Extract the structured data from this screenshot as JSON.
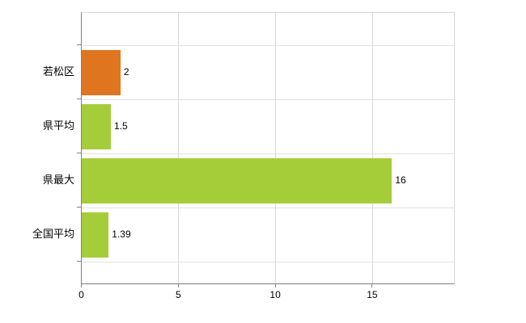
{
  "chart_data": {
    "type": "bar",
    "orientation": "horizontal",
    "title": "",
    "xlabel": "",
    "ylabel": "",
    "categories": [
      "若松区",
      "県平均",
      "県最大",
      "全国平均"
    ],
    "values": [
      2,
      1.5,
      16,
      1.39
    ],
    "value_labels": [
      "2",
      "1.5",
      "16",
      "1.39"
    ],
    "bar_colors": [
      "#e0751f",
      "#a5cd39",
      "#a5cd39",
      "#a5cd39"
    ],
    "x_ticks": [
      0,
      5,
      10,
      15
    ],
    "x_tick_labels": [
      "0",
      "5",
      "10",
      "15"
    ],
    "xlim": [
      0,
      19.2
    ],
    "grid": true,
    "legend": "none",
    "background_color": "#ffffff",
    "axis_color": "#808080",
    "gridline_color": "#d9d9d9"
  }
}
